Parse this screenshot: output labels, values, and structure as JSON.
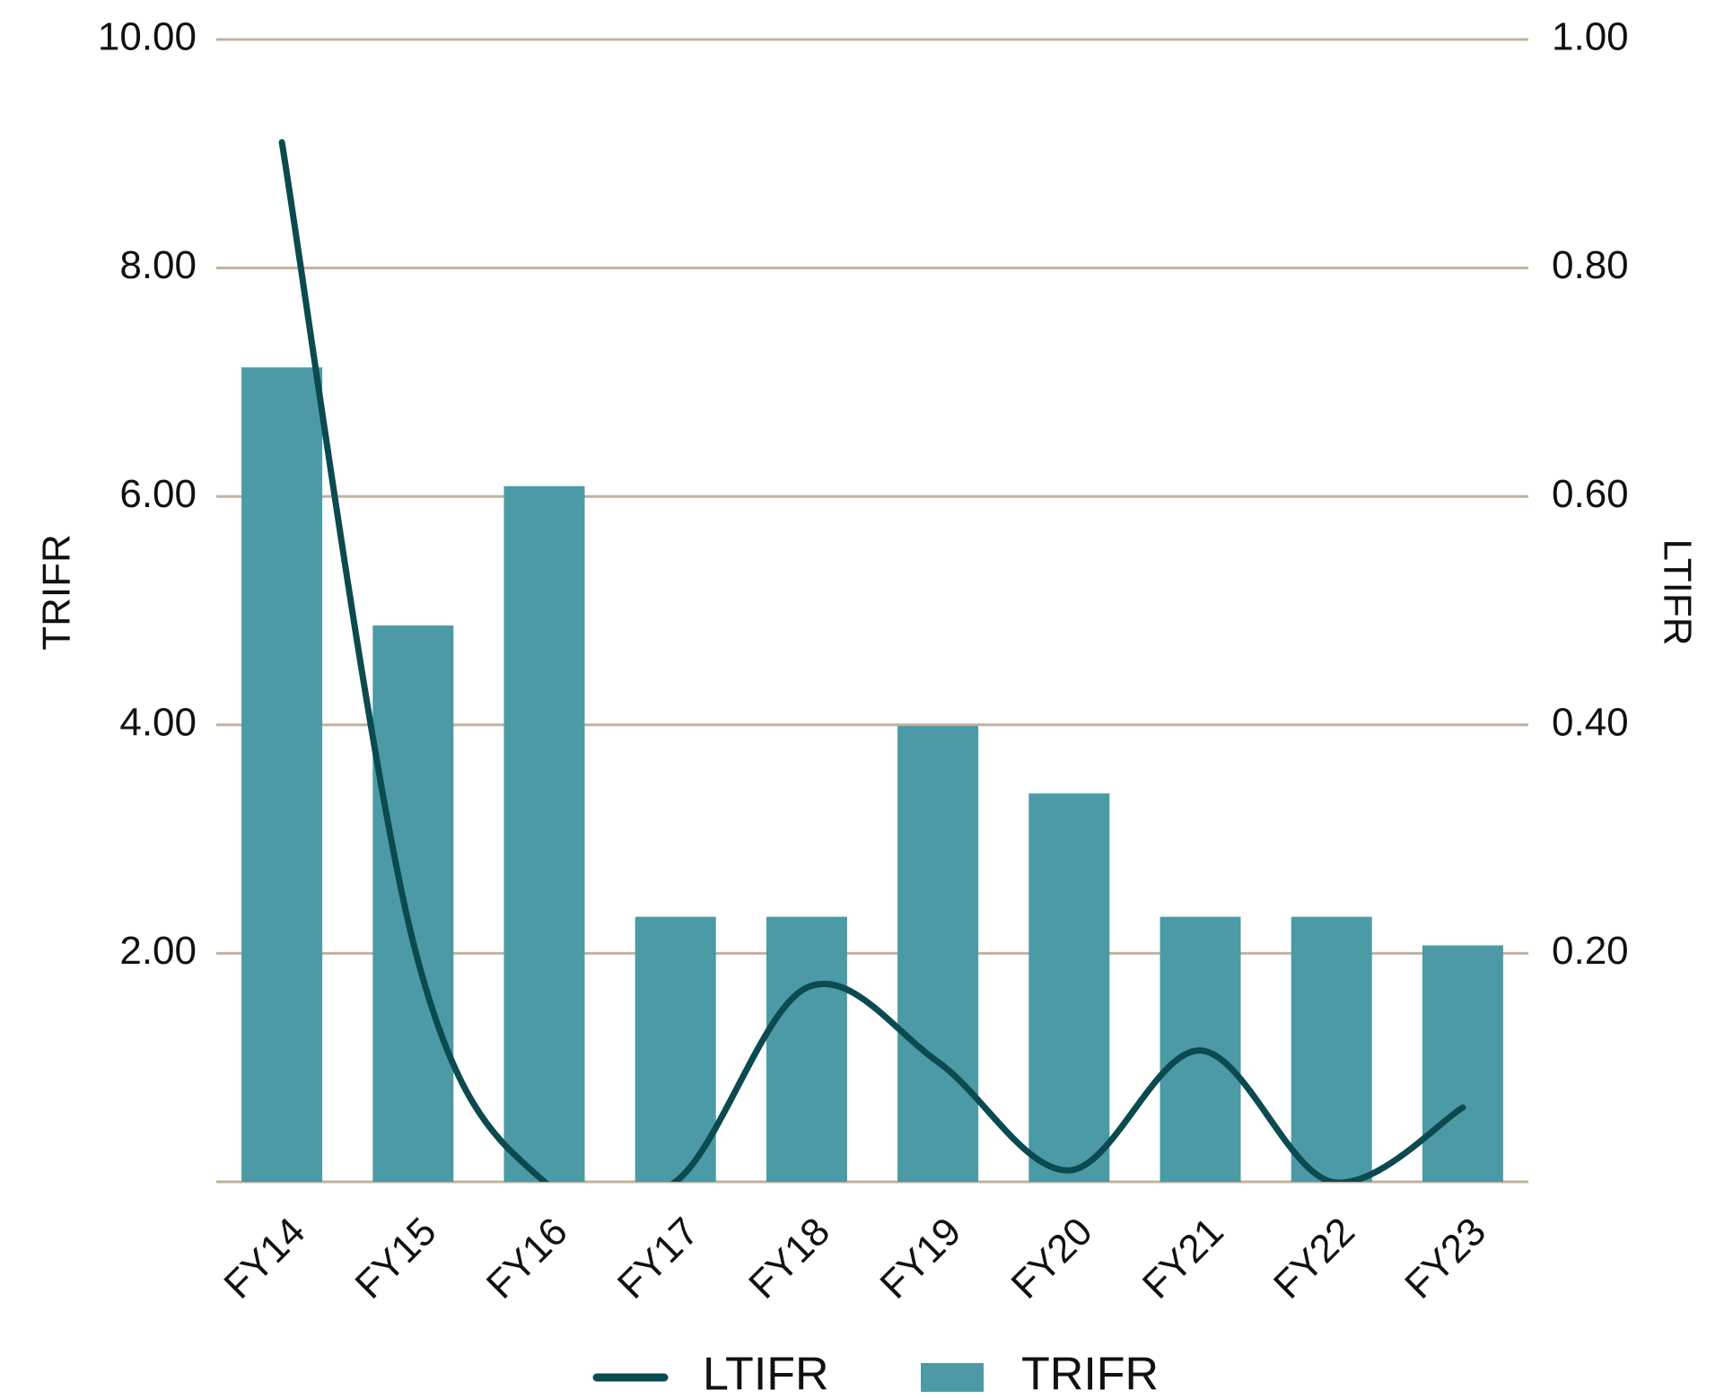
{
  "chart_data": {
    "type": "bar-line",
    "categories": [
      "FY14",
      "FY15",
      "FY16",
      "FY17",
      "FY18",
      "FY19",
      "FY20",
      "FY21",
      "FY22",
      "FY23"
    ],
    "series": [
      {
        "name": "LTIFR",
        "type": "line",
        "axis": "y2",
        "color": "#0b4a4f",
        "values": [
          0.91,
          0.21,
          0,
          0,
          0.17,
          0.105,
          0.01,
          0.115,
          0,
          0.065
        ]
      },
      {
        "name": "TRIFR",
        "type": "bar",
        "color": "#4b9aa6",
        "values": [
          7.13,
          4.87,
          6.09,
          2.32,
          2.32,
          3.99,
          3.4,
          2.32,
          2.32,
          2.07
        ]
      }
    ],
    "y_label": "TRIFR",
    "y2_label": "LTIFR",
    "ylim": [
      0,
      10
    ],
    "yticks": [
      {
        "value": 2,
        "label": "2.00"
      },
      {
        "value": 4,
        "label": "4.00"
      },
      {
        "value": 6,
        "label": "6.00"
      },
      {
        "value": 8,
        "label": "8.00"
      },
      {
        "value": 10,
        "label": "10.00"
      }
    ],
    "y2lim": [
      0,
      1
    ],
    "y2ticks": [
      {
        "value": 0.2,
        "label": "0.20"
      },
      {
        "value": 0.4,
        "label": "0.40"
      },
      {
        "value": 0.6,
        "label": "0.60"
      },
      {
        "value": 0.8,
        "label": "0.80"
      },
      {
        "value": 1,
        "label": "1.00"
      }
    ],
    "grid": true,
    "grid_color": "#c2b29c",
    "legend": "bottom"
  }
}
